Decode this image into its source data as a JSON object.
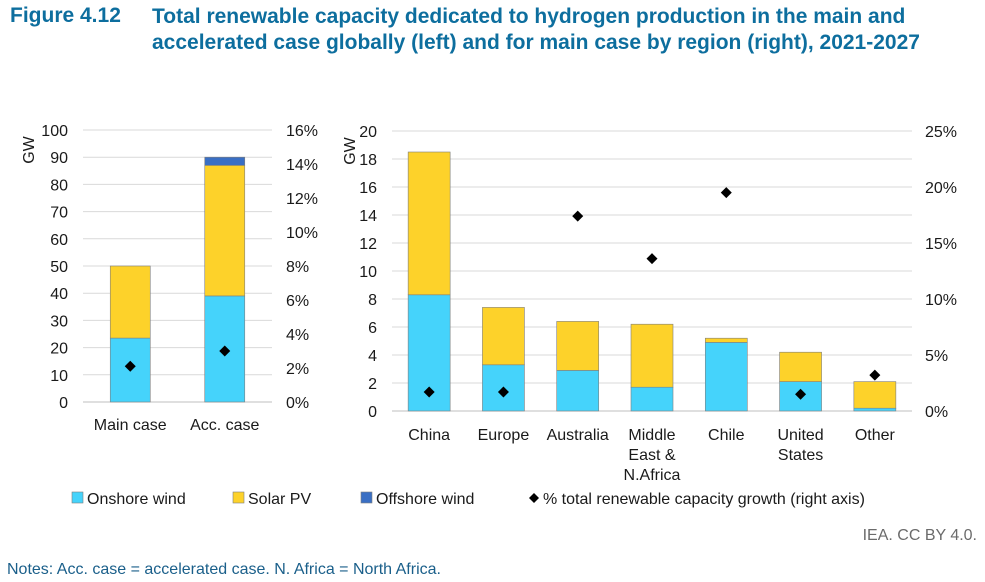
{
  "figure": {
    "label": "Figure 4.12",
    "title": "Total renewable capacity dedicated to hydrogen production in the main and accelerated case globally (left) and for main case by region (right), 2021-2027"
  },
  "credit": "IEA. CC BY 4.0.",
  "notes": "Notes: Acc. case = accelerated case. N. Africa = North Africa.",
  "colors": {
    "onshore_wind": "#45d3fb",
    "solar_pv": "#fdd22a",
    "offshore_wind": "#3a6fc4",
    "growth_marker": "#000000"
  },
  "legend": [
    {
      "label": "Onshore wind",
      "color_key": "onshore_wind",
      "shape": "square"
    },
    {
      "label": "Solar PV",
      "color_key": "solar_pv",
      "shape": "square"
    },
    {
      "label": "Offshore wind",
      "color_key": "offshore_wind",
      "shape": "square"
    },
    {
      "label": "% total renewable capacity growth (right axis)",
      "color_key": "growth_marker",
      "shape": "diamond"
    }
  ],
  "chart_data": [
    {
      "type": "bar",
      "stacked": true,
      "ylabel": "GW",
      "ylim": [
        0,
        100
      ],
      "yticks": [
        0,
        10,
        20,
        30,
        40,
        50,
        60,
        70,
        80,
        90,
        100
      ],
      "y2lim": [
        0,
        16
      ],
      "y2ticks": [
        "0%",
        "2%",
        "4%",
        "6%",
        "8%",
        "10%",
        "12%",
        "14%",
        "16%"
      ],
      "categories": [
        "Main case",
        "Acc. case"
      ],
      "series": [
        {
          "name": "Onshore wind",
          "color_key": "onshore_wind",
          "values": [
            23.5,
            39
          ]
        },
        {
          "name": "Solar PV",
          "color_key": "solar_pv",
          "values": [
            26.5,
            48
          ]
        },
        {
          "name": "Offshore wind",
          "color_key": "offshore_wind",
          "values": [
            0,
            3
          ]
        }
      ],
      "markers": {
        "name": "% total renewable capacity growth (right axis)",
        "axis": "right",
        "values": [
          2.1,
          3.0
        ]
      }
    },
    {
      "type": "bar",
      "stacked": true,
      "ylabel": "GW",
      "ylim": [
        0,
        20
      ],
      "yticks": [
        0,
        2,
        4,
        6,
        8,
        10,
        12,
        14,
        16,
        18,
        20
      ],
      "y2lim": [
        0,
        25
      ],
      "y2ticks": [
        "0%",
        "5%",
        "10%",
        "15%",
        "20%",
        "25%"
      ],
      "categories": [
        "China",
        "Europe",
        "Australia",
        "Middle East & N.Africa",
        "Chile",
        "United States",
        "Other"
      ],
      "category_lines": [
        [
          "China"
        ],
        [
          "Europe"
        ],
        [
          "Australia"
        ],
        [
          "Middle",
          "East &",
          "N.Africa"
        ],
        [
          "Chile"
        ],
        [
          "United",
          "States"
        ],
        [
          "Other"
        ]
      ],
      "series": [
        {
          "name": "Onshore wind",
          "color_key": "onshore_wind",
          "values": [
            8.3,
            3.3,
            2.9,
            1.7,
            4.9,
            2.1,
            0.2
          ]
        },
        {
          "name": "Solar PV",
          "color_key": "solar_pv",
          "values": [
            10.2,
            4.1,
            3.5,
            4.5,
            0.3,
            2.1,
            1.9
          ]
        },
        {
          "name": "Offshore wind",
          "color_key": "offshore_wind",
          "values": [
            0,
            0,
            0,
            0,
            0,
            0,
            0
          ]
        }
      ],
      "markers": {
        "name": "% total renewable capacity growth (right axis)",
        "axis": "right",
        "values": [
          1.7,
          1.7,
          17.4,
          13.6,
          19.5,
          1.5,
          3.2
        ]
      }
    }
  ]
}
